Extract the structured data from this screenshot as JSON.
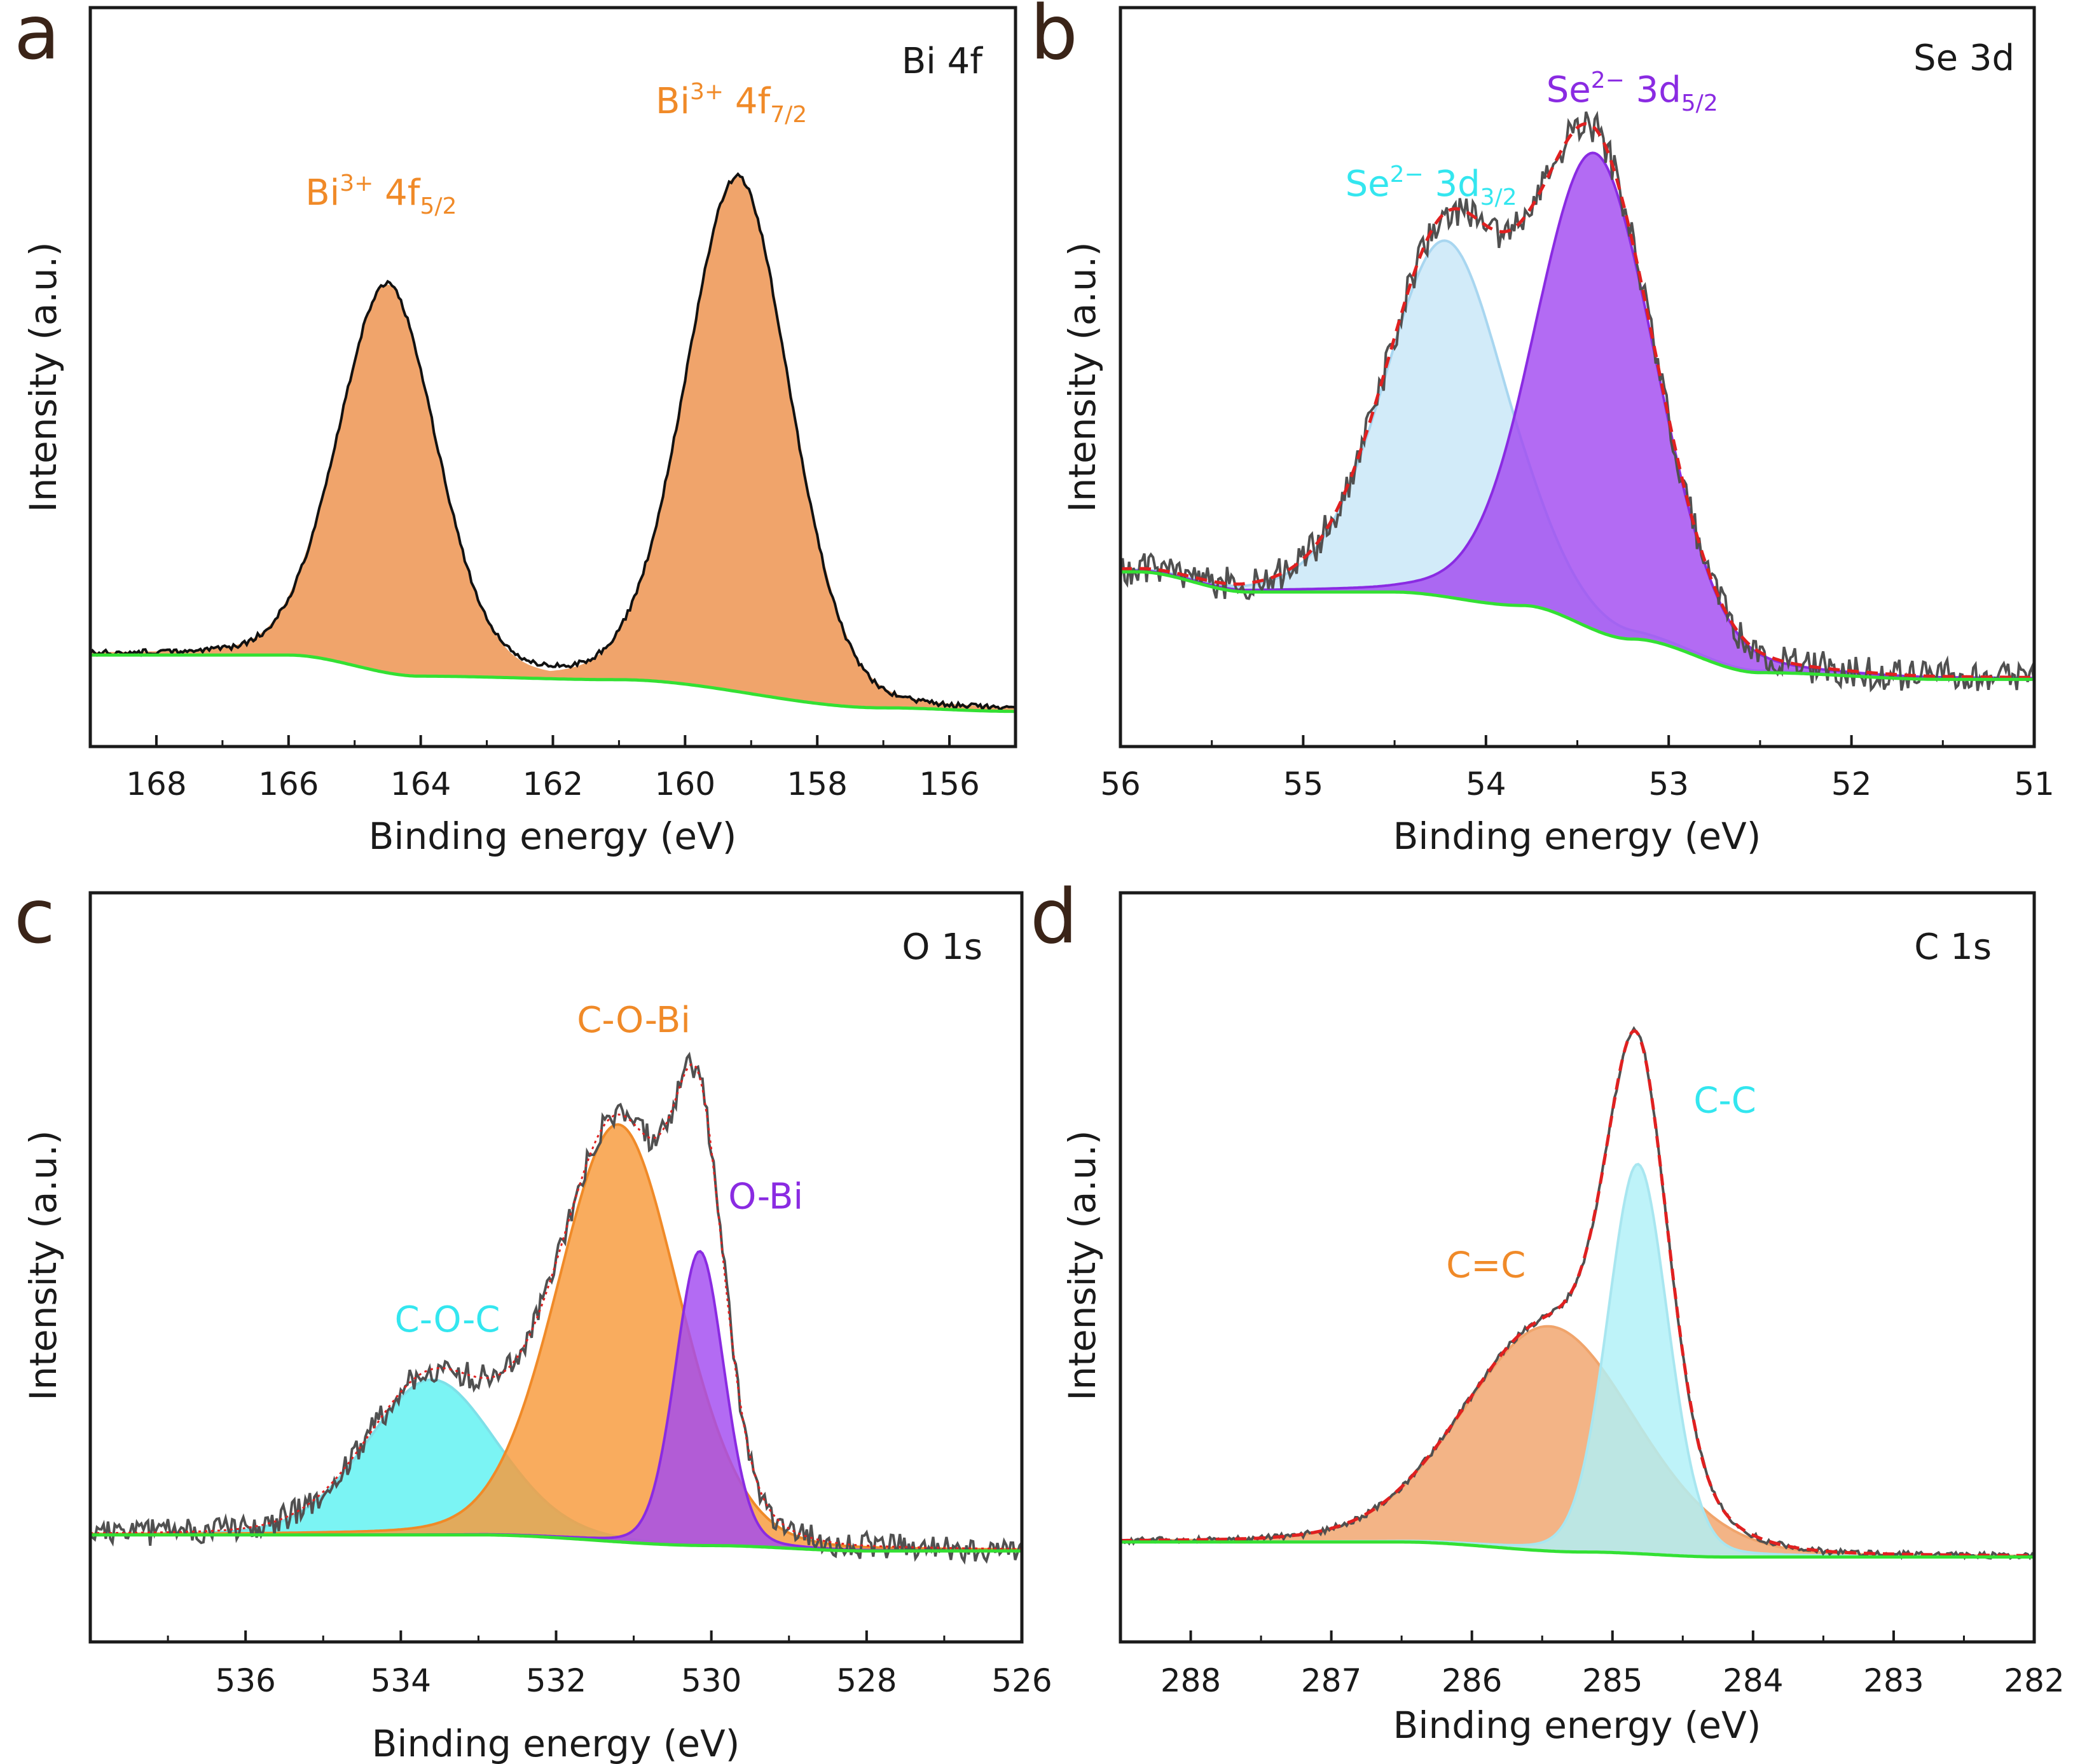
{
  "colors": {
    "orange": "#f0a46b",
    "orange_text": "#f08a28",
    "purple": "#a24af0",
    "purple_text": "#8a2be2",
    "cyan": "#5ef2f2",
    "cyan_text": "#33e6ef",
    "lightblue": "#c8e6f8",
    "green": "#33e033",
    "red": "#e02020"
  },
  "chart_data": [
    {
      "panel": "a",
      "type": "line",
      "title": "Bi 4f",
      "xlabel": "Binding energy (eV)",
      "ylabel": "Intensity (a.u.)",
      "xlim": [
        169,
        155
      ],
      "ylim": [
        -0.05,
        1.0
      ],
      "xticks": [
        "168",
        "166",
        "164",
        "162",
        "160",
        "158",
        "156"
      ],
      "xtick_values": [
        168,
        166,
        164,
        162,
        160,
        158,
        156
      ],
      "background": {
        "name": "Background",
        "points": [
          [
            169,
            0.08
          ],
          [
            166,
            0.08
          ],
          [
            164,
            0.05
          ],
          [
            161,
            0.045
          ],
          [
            157,
            0.005
          ],
          [
            155,
            0.0
          ]
        ]
      },
      "components": [
        {
          "name": "Bi3+ 4f5/2",
          "center": 164.5,
          "height": 0.55,
          "width": 0.75,
          "fill": "#f0a46b",
          "stroke": "#f0a46b"
        },
        {
          "name": "Bi3+ 4f7/2",
          "center": 159.2,
          "height": 0.73,
          "width": 0.8,
          "fill": "#f0a46b",
          "stroke": "#f0a46b"
        }
      ],
      "peak_labels": [
        {
          "base": "Bi",
          "sup": "3+",
          "mid": " 4f",
          "sub": "5/2",
          "x": 164.6,
          "y": 0.72,
          "color": "#f08a28"
        },
        {
          "base": "Bi",
          "sup": "3+",
          "mid": " 4f",
          "sub": "7/2",
          "x": 159.3,
          "y": 0.85,
          "color": "#f08a28"
        }
      ]
    },
    {
      "panel": "b",
      "type": "line",
      "title": "Se 3d",
      "xlabel": "Binding energy (eV)",
      "ylabel": "Intensity (a.u.)",
      "xlim": [
        56,
        51
      ],
      "ylim": [
        -0.1,
        1.0
      ],
      "xticks": [
        "56",
        "55",
        "54",
        "53",
        "52",
        "51"
      ],
      "xtick_values": [
        56,
        55,
        54,
        53,
        52,
        51
      ],
      "background": {
        "name": "Background",
        "points": [
          [
            55.9,
            0.16
          ],
          [
            55.3,
            0.13
          ],
          [
            54.5,
            0.13
          ],
          [
            53.8,
            0.11
          ],
          [
            53.2,
            0.06
          ],
          [
            52.5,
            0.01
          ],
          [
            51.5,
            0.0
          ],
          [
            51.0,
            0.0
          ]
        ]
      },
      "components": [
        {
          "name": "Se2- 3d3/2",
          "center": 54.22,
          "height": 0.53,
          "width": 0.34,
          "fill": "#c8e6f8",
          "stroke": "#a8d6f0"
        },
        {
          "name": "Se2- 3d5/2",
          "center": 53.4,
          "height": 0.71,
          "width": 0.33,
          "fill": "#a24af0",
          "stroke": "#8a2be2"
        }
      ],
      "peak_labels": [
        {
          "base": "Se",
          "sup": "2−",
          "mid": " 3d",
          "sub": "3/2",
          "x": 54.3,
          "y": 0.72,
          "color": "#33e6ef"
        },
        {
          "base": "Se",
          "sup": "2−",
          "mid": " 3d",
          "sub": "5/2",
          "x": 53.2,
          "y": 0.86,
          "color": "#8a2be2"
        }
      ]
    },
    {
      "panel": "c",
      "type": "line",
      "title": "O 1s",
      "xlabel": "Binding energy (eV)",
      "ylabel": "Intensity (a.u.)",
      "xlim": [
        538,
        526
      ],
      "ylim": [
        -0.2,
        1.2
      ],
      "xticks": [
        "536",
        "534",
        "532",
        "530",
        "528",
        "526"
      ],
      "xtick_values": [
        536,
        534,
        532,
        530,
        528,
        526
      ],
      "background": {
        "name": "Background",
        "points": [
          [
            538,
            0.0
          ],
          [
            533,
            0.0
          ],
          [
            530,
            -0.02
          ],
          [
            528,
            -0.03
          ],
          [
            526,
            -0.03
          ]
        ]
      },
      "components": [
        {
          "name": "C-O-C",
          "center": 533.6,
          "height": 0.29,
          "width": 0.85,
          "fill": "#5ef2f2",
          "stroke": "#7ee0e8"
        },
        {
          "name": "C-O-Bi",
          "center": 531.2,
          "height": 0.78,
          "width": 0.8,
          "fill": "#f89a3a",
          "stroke": "#f08a28"
        },
        {
          "name": "O-Bi",
          "center": 530.15,
          "height": 0.55,
          "width": 0.32,
          "fill": "#a24af0",
          "stroke": "#8a2be2"
        }
      ],
      "peak_labels": [
        {
          "base": "C-O-C",
          "sup": "",
          "mid": "",
          "sub": "",
          "x": 533.4,
          "y": 0.38,
          "color": "#33e6ef"
        },
        {
          "base": "C-O-Bi",
          "sup": "",
          "mid": "",
          "sub": "",
          "x": 531.0,
          "y": 0.94,
          "color": "#f08a28"
        },
        {
          "base": "O-Bi",
          "sup": "",
          "mid": "",
          "sub": "",
          "x": 529.3,
          "y": 0.61,
          "color": "#8a2be2"
        }
      ]
    },
    {
      "panel": "d",
      "type": "line",
      "title": "C 1s",
      "xlabel": "Binding energy (eV)",
      "ylabel": "Intensity (a.u.)",
      "xlim": [
        288.5,
        282
      ],
      "ylim": [
        -0.2,
        1.3
      ],
      "xticks": [
        "288",
        "287",
        "286",
        "285",
        "284",
        "283",
        "282"
      ],
      "xtick_values": [
        288,
        287,
        286,
        285,
        284,
        283,
        282
      ],
      "background": {
        "name": "Background",
        "points": [
          [
            288.5,
            0.0
          ],
          [
            286.5,
            0.0
          ],
          [
            285.2,
            -0.02
          ],
          [
            284.2,
            -0.03
          ],
          [
            283,
            -0.03
          ],
          [
            282,
            -0.03
          ]
        ]
      },
      "components": [
        {
          "name": "C=C",
          "center": 285.45,
          "height": 0.45,
          "width": 0.62,
          "fill": "#f0a46b",
          "stroke": "#f0a46b"
        },
        {
          "name": "C-C",
          "center": 284.82,
          "height": 0.78,
          "width": 0.22,
          "fill": "#b0f0f8",
          "stroke": "#a8e6f0"
        }
      ],
      "peak_labels": [
        {
          "base": "C=C",
          "sup": "",
          "mid": "",
          "sub": "",
          "x": 285.9,
          "y": 0.53,
          "color": "#f08a28"
        },
        {
          "base": "C-C",
          "sup": "",
          "mid": "",
          "sub": "",
          "x": 284.2,
          "y": 0.86,
          "color": "#33e6ef"
        }
      ]
    }
  ]
}
